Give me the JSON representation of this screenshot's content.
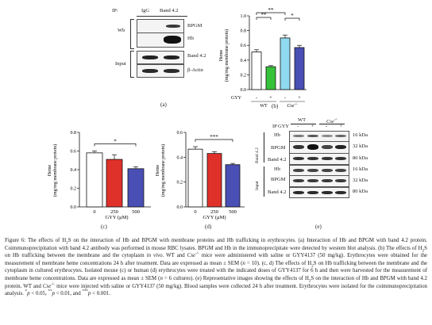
{
  "panel_a": {
    "letter": "(a)",
    "ip_label": "IP:",
    "lanes": [
      "IgG",
      "Band 4.2"
    ],
    "wb_label": "Wb",
    "input_label": "Input",
    "bands": [
      "BPGM",
      "Hb",
      "Band 4.2",
      "β-Actin"
    ]
  },
  "panel_e": {
    "letter": "(e)",
    "ip_label": "IP",
    "gyy_label": "GYY",
    "wt_label": "WT",
    "cse_label": "Cse",
    "cse_sup": "-/-",
    "signs": [
      "-",
      "+",
      "-",
      "+"
    ],
    "group_band": "Band 4.2",
    "group_input": "Input",
    "rows": [
      {
        "name": "Hb",
        "kda": "16 kDa"
      },
      {
        "name": "BPGM",
        "kda": "32 kDa"
      },
      {
        "name": "Band 4.2",
        "kda": "80 kDa"
      },
      {
        "name": "Hb",
        "kda": "16 kDa"
      },
      {
        "name": "BPGM",
        "kda": "32 kDa"
      },
      {
        "name": "Band 4.2",
        "kda": "80 kDa"
      }
    ]
  },
  "chart_data": [
    {
      "id": "b",
      "letter": "(b)",
      "type": "bar",
      "ylabel_line1": "Heme",
      "ylabel_line2": "(mg/mg membrane protein)",
      "ylim": [
        0,
        1.0
      ],
      "yticks": [
        0.0,
        0.2,
        0.4,
        0.6,
        0.8,
        1.0
      ],
      "tick_labels": [
        "0.0",
        "0.2",
        "0.4",
        "0.6",
        "0.8",
        "1.0"
      ],
      "gyy_label": "GYY",
      "signs": [
        "-",
        "+",
        "-",
        "+"
      ],
      "group_labels": [
        "WT",
        "Cse"
      ],
      "cse_sup": "-/-",
      "values": [
        0.51,
        0.31,
        0.7,
        0.57
      ],
      "errors": [
        0.03,
        0.015,
        0.04,
        0.03
      ],
      "colors": [
        "#ffffff",
        "#36c23a",
        "#8fdaf0",
        "#4a4fb5"
      ],
      "significance": [
        {
          "from": 0,
          "to": 2,
          "label": "**"
        },
        {
          "from": 0,
          "to": 1,
          "label": "**"
        },
        {
          "from": 2,
          "to": 3,
          "label": "*"
        }
      ]
    },
    {
      "id": "c",
      "letter": "(c)",
      "type": "bar",
      "ylabel_line1": "Heme",
      "ylabel_line2": "(mg/mg membrane protein)",
      "ylim": [
        0,
        0.8
      ],
      "yticks": [
        0.0,
        0.2,
        0.4,
        0.6,
        0.8
      ],
      "tick_labels": [
        "0.0",
        "0.2",
        "0.4",
        "0.6",
        "0.8"
      ],
      "categories": [
        "0",
        "250",
        "500"
      ],
      "xlabel": "GYY (μM)",
      "values": [
        0.58,
        0.51,
        0.41
      ],
      "errors": [
        0.02,
        0.05,
        0.02
      ],
      "colors": [
        "#ffffff",
        "#e0302a",
        "#4a4fb5"
      ],
      "significance": [
        {
          "from": 0,
          "to": 2,
          "label": "*"
        }
      ]
    },
    {
      "id": "d",
      "letter": "(d)",
      "type": "bar",
      "ylabel_line1": "Heme",
      "ylabel_line2": "(mg/mg membrane protein)",
      "ylim": [
        0,
        0.6
      ],
      "yticks": [
        0.0,
        0.2,
        0.4,
        0.6
      ],
      "tick_labels": [
        "0.0",
        "0.2",
        "0.4",
        "0.6"
      ],
      "categories": [
        "0",
        "250",
        "500"
      ],
      "xlabel": "GYY (μM)",
      "values": [
        0.465,
        0.43,
        0.34
      ],
      "errors": [
        0.02,
        0.015,
        0.01
      ],
      "colors": [
        "#ffffff",
        "#e0302a",
        "#4a4fb5"
      ],
      "significance": [
        {
          "from": 0,
          "to": 2,
          "label": "***"
        }
      ]
    }
  ],
  "caption": {
    "p01": "Figure 6: The effects of H",
    "p02": "2",
    "p03": "S on the interaction of Hb and BPGM with membrane proteins and Hb trafficking in erythrocytes. (a) Interaction of Hb and BPGM with band 4.2 protein. Coimmunoprecipitation with band 4.2 antibody was performed in mouse RBC lysates. BPGM and Hb in the immunoprecipitate were detected by western blot analysis. (b) The effects of H",
    "p04": "2",
    "p05": "S on Hb trafficking between the membrane and the cytoplasm ",
    "p06": "in vivo",
    "p07": ". WT and ",
    "p08": "Cse",
    "p09": "-/-",
    "p10": " mice were administered with saline or GYY4137 (50 mg/kg). Erythrocytes were obtained for the measurement of membrane heme concentrations 24 h after treatment. Data are expressed as mean ± SEM (",
    "p11": "n",
    "p12": " = 10). (c, d) The effects of H",
    "p13": "2",
    "p14": "S on Hb trafficking between the membrane and the cytoplasm in cultured erythrocytes. Isolated mouse (c) or human (d) erythrocytes were treated with the indicated doses of GYY4137 for 6 h and then were harvested for the measurement of membrane heme concentrations. Data are expressed as mean ± SEM (",
    "p15": "n",
    "p16": " = 6 cultures). (e) Representative images showing the effects of H",
    "p17": "2",
    "p18": "S on the interaction of Hb and BPGM with band 4.2 protein. WT and ",
    "p19": "Cse",
    "p20": "-/-",
    "p21": " mice were injected with saline or GYY4137 (50 mg/kg). Blood samples were collected 24 h after treatment. Erythrocytes were isolated for the coimmunoprecipitation analysis. ",
    "p22": "*",
    "p23": "p",
    "p24": " < 0.05, ",
    "p25": "**",
    "p26": "p",
    "p27": " < 0.01, and ",
    "p28": "***",
    "p29": "p",
    "p30": " < 0.001."
  }
}
